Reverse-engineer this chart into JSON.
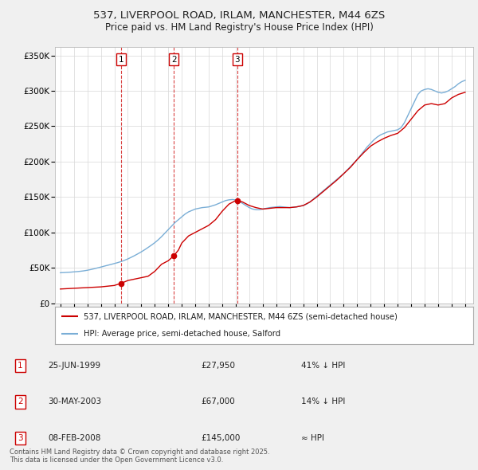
{
  "title": "537, LIVERPOOL ROAD, IRLAM, MANCHESTER, M44 6ZS",
  "subtitle": "Price paid vs. HM Land Registry's House Price Index (HPI)",
  "ylabel_ticks": [
    "£0",
    "£50K",
    "£100K",
    "£150K",
    "£200K",
    "£250K",
    "£300K",
    "£350K"
  ],
  "ytick_values": [
    0,
    50000,
    100000,
    150000,
    200000,
    250000,
    300000,
    350000
  ],
  "ylim": [
    0,
    362000
  ],
  "xlim_start": 1994.6,
  "xlim_end": 2025.6,
  "sales": [
    {
      "label": "1",
      "date": "25-JUN-1999",
      "price": 27950,
      "year": 1999.48,
      "note": "41% ↓ HPI"
    },
    {
      "label": "2",
      "date": "30-MAY-2003",
      "price": 67000,
      "year": 2003.41,
      "note": "14% ↓ HPI"
    },
    {
      "label": "3",
      "date": "08-FEB-2008",
      "price": 145000,
      "year": 2008.1,
      "note": "≈ HPI"
    }
  ],
  "legend_line1": "537, LIVERPOOL ROAD, IRLAM, MANCHESTER, M44 6ZS (semi-detached house)",
  "legend_line2": "HPI: Average price, semi-detached house, Salford",
  "footer": "Contains HM Land Registry data © Crown copyright and database right 2025.\nThis data is licensed under the Open Government Licence v3.0.",
  "property_color": "#cc0000",
  "hpi_color": "#7aaed6",
  "background_color": "#f0f0f0",
  "plot_bg_color": "#ffffff",
  "hpi_data": {
    "years": [
      1995.0,
      1995.25,
      1995.5,
      1995.75,
      1996.0,
      1996.25,
      1996.5,
      1996.75,
      1997.0,
      1997.25,
      1997.5,
      1997.75,
      1998.0,
      1998.25,
      1998.5,
      1998.75,
      1999.0,
      1999.25,
      1999.5,
      1999.75,
      2000.0,
      2000.25,
      2000.5,
      2000.75,
      2001.0,
      2001.25,
      2001.5,
      2001.75,
      2002.0,
      2002.25,
      2002.5,
      2002.75,
      2003.0,
      2003.25,
      2003.5,
      2003.75,
      2004.0,
      2004.25,
      2004.5,
      2004.75,
      2005.0,
      2005.25,
      2005.5,
      2005.75,
      2006.0,
      2006.25,
      2006.5,
      2006.75,
      2007.0,
      2007.25,
      2007.5,
      2007.75,
      2008.0,
      2008.25,
      2008.5,
      2008.75,
      2009.0,
      2009.25,
      2009.5,
      2009.75,
      2010.0,
      2010.25,
      2010.5,
      2010.75,
      2011.0,
      2011.25,
      2011.5,
      2011.75,
      2012.0,
      2012.25,
      2012.5,
      2012.75,
      2013.0,
      2013.25,
      2013.5,
      2013.75,
      2014.0,
      2014.25,
      2014.5,
      2014.75,
      2015.0,
      2015.25,
      2015.5,
      2015.75,
      2016.0,
      2016.25,
      2016.5,
      2016.75,
      2017.0,
      2017.25,
      2017.5,
      2017.75,
      2018.0,
      2018.25,
      2018.5,
      2018.75,
      2019.0,
      2019.25,
      2019.5,
      2019.75,
      2020.0,
      2020.25,
      2020.5,
      2020.75,
      2021.0,
      2021.25,
      2021.5,
      2021.75,
      2022.0,
      2022.25,
      2022.5,
      2022.75,
      2023.0,
      2023.25,
      2023.5,
      2023.75,
      2024.0,
      2024.25,
      2024.5,
      2024.75,
      2025.0
    ],
    "values": [
      43000,
      43200,
      43500,
      43800,
      44200,
      44600,
      45100,
      45700,
      46500,
      47500,
      48600,
      49800,
      51000,
      52300,
      53500,
      54700,
      56000,
      57300,
      58800,
      60500,
      62500,
      64800,
      67200,
      69800,
      72500,
      75500,
      78700,
      82000,
      85500,
      89500,
      94000,
      99000,
      104000,
      109000,
      114000,
      118000,
      122000,
      126000,
      129000,
      131000,
      133000,
      134000,
      135000,
      135500,
      136000,
      137500,
      139000,
      141000,
      143000,
      145000,
      146000,
      146500,
      146000,
      144000,
      141000,
      138000,
      135000,
      133000,
      132000,
      132000,
      133000,
      134000,
      135000,
      135500,
      136000,
      136500,
      136000,
      135500,
      135000,
      135500,
      136000,
      137000,
      138000,
      140000,
      143000,
      147000,
      151000,
      155000,
      159000,
      163000,
      167000,
      171000,
      175000,
      179000,
      183000,
      188000,
      193000,
      198000,
      203000,
      209000,
      215000,
      221000,
      226000,
      231000,
      235000,
      238000,
      240000,
      242000,
      243000,
      244000,
      245000,
      248000,
      255000,
      265000,
      275000,
      285000,
      295000,
      300000,
      302000,
      303000,
      302000,
      300000,
      298000,
      297000,
      298000,
      300000,
      303000,
      306000,
      310000,
      313000,
      315000
    ]
  },
  "property_data": {
    "years": [
      1995.0,
      1995.5,
      1996.0,
      1996.5,
      1997.0,
      1997.5,
      1998.0,
      1998.5,
      1999.0,
      1999.48,
      1999.75,
      2000.0,
      2000.5,
      2001.0,
      2001.5,
      2002.0,
      2002.5,
      2003.0,
      2003.41,
      2003.75,
      2004.0,
      2004.5,
      2005.0,
      2005.5,
      2006.0,
      2006.5,
      2007.0,
      2007.5,
      2008.0,
      2008.1,
      2008.5,
      2009.0,
      2009.5,
      2010.0,
      2010.5,
      2011.0,
      2011.5,
      2012.0,
      2012.5,
      2013.0,
      2013.5,
      2014.0,
      2014.5,
      2015.0,
      2015.5,
      2016.0,
      2016.5,
      2017.0,
      2017.5,
      2018.0,
      2018.5,
      2019.0,
      2019.5,
      2020.0,
      2020.5,
      2021.0,
      2021.5,
      2022.0,
      2022.5,
      2023.0,
      2023.5,
      2024.0,
      2024.5,
      2025.0
    ],
    "values": [
      20000,
      20500,
      21000,
      21500,
      22000,
      22500,
      23000,
      24000,
      25000,
      27950,
      30000,
      32000,
      34000,
      36000,
      38000,
      45000,
      55000,
      60000,
      67000,
      75000,
      85000,
      95000,
      100000,
      105000,
      110000,
      118000,
      130000,
      140000,
      145000,
      145000,
      143000,
      138000,
      135000,
      133000,
      134000,
      135000,
      135000,
      135000,
      136000,
      138000,
      143000,
      150000,
      158000,
      166000,
      174000,
      183000,
      192000,
      203000,
      213000,
      222000,
      228000,
      233000,
      237000,
      240000,
      248000,
      260000,
      272000,
      280000,
      282000,
      280000,
      282000,
      290000,
      295000,
      298000
    ]
  }
}
